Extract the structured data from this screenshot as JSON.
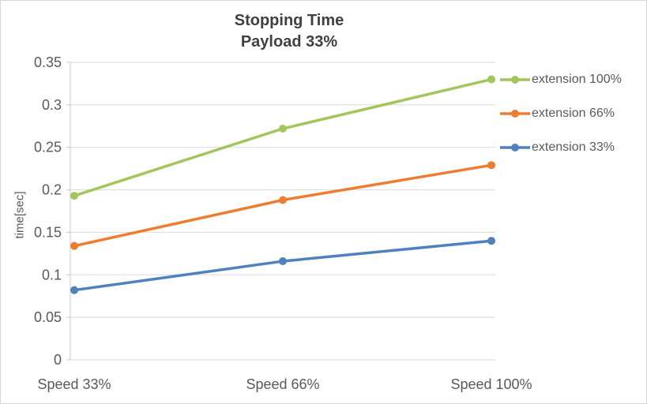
{
  "chart_data": {
    "type": "line",
    "title": "Stopping Time",
    "subtitle": "Payload 33%",
    "xlabel": "",
    "ylabel": "time[sec]",
    "categories": [
      "Speed 33%",
      "Speed 66%",
      "Speed 100%"
    ],
    "series": [
      {
        "name": "extension 100%",
        "color": "#A3C65A",
        "values": [
          0.193,
          0.272,
          0.33
        ]
      },
      {
        "name": "extension 66%",
        "color": "#ED7D31",
        "values": [
          0.134,
          0.188,
          0.229
        ]
      },
      {
        "name": "extension 33%",
        "color": "#4F81BD",
        "values": [
          0.082,
          0.116,
          0.14
        ]
      }
    ],
    "ylim": [
      0,
      0.35
    ],
    "yticks": [
      "0",
      "0.05",
      "0.1",
      "0.15",
      "0.2",
      "0.25",
      "0.3",
      "0.35"
    ],
    "grid": true,
    "legend_position": "right"
  },
  "style_colors": {
    "grid": "#D9D9D9",
    "axis_line": "#C9C9C9",
    "tick_text": "#595959",
    "title_text": "#404040"
  }
}
